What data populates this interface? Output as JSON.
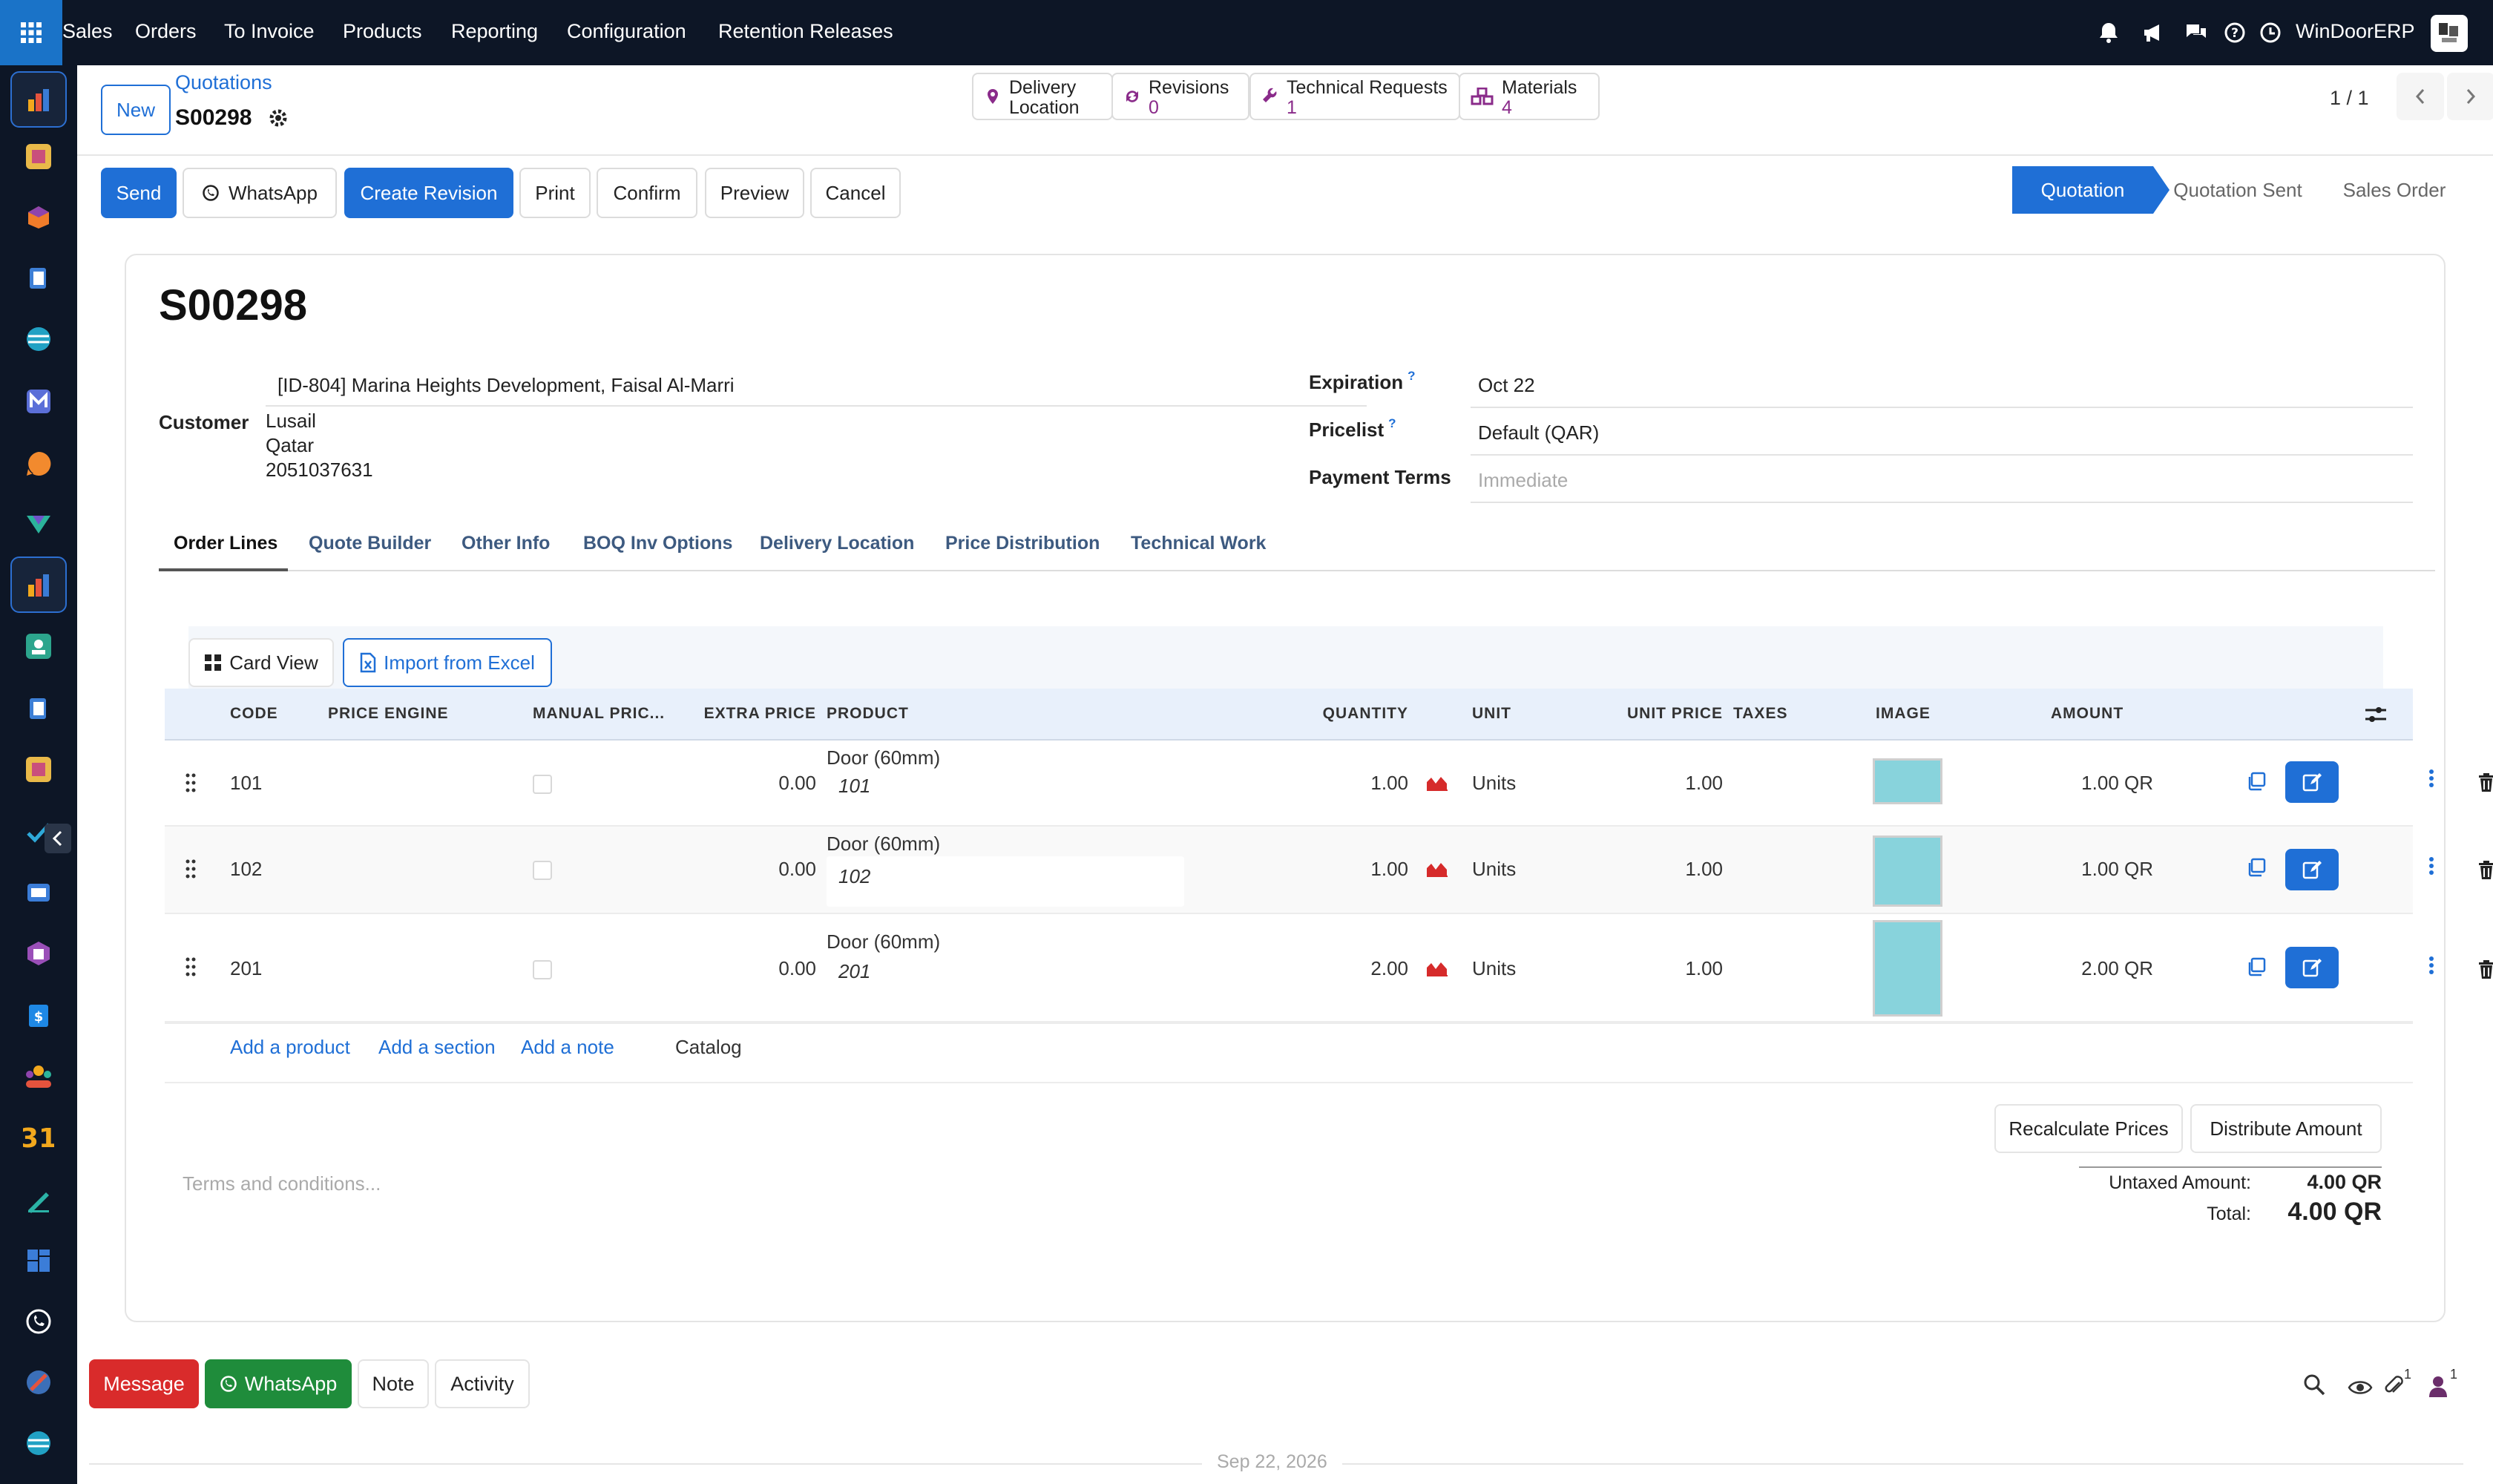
{
  "topnav": {
    "menu": [
      "Sales",
      "Orders",
      "To Invoice",
      "Products",
      "Reporting",
      "Configuration",
      "Retention Releases"
    ],
    "company": "WinDoorERP",
    "icons": [
      "bell-icon",
      "megaphone-icon",
      "chat-icon",
      "help-icon",
      "clock-icon"
    ]
  },
  "sidebar": {
    "icons": [
      "sales-app-icon",
      "app-icon-2",
      "app-icon-3",
      "app-icon-4",
      "app-icon-5",
      "app-icon-6",
      "app-icon-7",
      "app-icon-8",
      "sales-app-icon-active",
      "app-icon-10",
      "app-icon-11",
      "app-icon-12",
      "app-icon-13",
      "app-icon-14",
      "app-icon-15",
      "app-icon-16",
      "app-icon-17",
      "calendar-app-icon",
      "app-icon-19",
      "app-icon-20",
      "whatsapp-app-icon",
      "app-icon-22",
      "app-icon-23"
    ]
  },
  "control": {
    "new_label": "New",
    "breadcrumb": "Quotations",
    "record": "S00298",
    "pager": "1 / 1"
  },
  "smart_buttons": [
    {
      "title": "Delivery",
      "value": "Location"
    },
    {
      "title": "Revisions",
      "value": "0"
    },
    {
      "title": "Technical Requests",
      "value": "1"
    },
    {
      "title": "Materials",
      "value": "4"
    }
  ],
  "actions": {
    "send": "Send",
    "whatsapp": "WhatsApp",
    "create_revision": "Create Revision",
    "print": "Print",
    "confirm": "Confirm",
    "preview": "Preview",
    "cancel": "Cancel"
  },
  "status_stages": [
    "Quotation",
    "Quotation Sent",
    "Sales Order"
  ],
  "status_active": "Quotation",
  "form": {
    "name": "S00298",
    "customer_label": "Customer",
    "customer_name": "[ID-804] Marina Heights Development, Faisal Al-Marri",
    "customer_city": "Lusail",
    "customer_country": "Qatar",
    "customer_phone": "2051037631",
    "expiration_label": "Expiration",
    "expiration_value": "Oct 22",
    "pricelist_label": "Pricelist",
    "pricelist_value": "Default (QAR)",
    "payment_terms_label": "Payment Terms",
    "payment_terms_placeholder": "Immediate",
    "help_mark": "?"
  },
  "tabs": [
    "Order Lines",
    "Quote Builder",
    "Other Info",
    "BOQ Inv Options",
    "Delivery Location",
    "Price Distribution",
    "Technical Work"
  ],
  "lines_toolbar": {
    "card_view": "Card View",
    "import_excel": "Import from Excel"
  },
  "table": {
    "columns": [
      "CODE",
      "PRICE ENGINE",
      "MANUAL PRIC...",
      "EXTRA PRICE",
      "PRODUCT",
      "QUANTITY",
      "UNIT",
      "UNIT PRICE",
      "TAXES",
      "IMAGE",
      "AMOUNT"
    ],
    "rows": [
      {
        "code": "101",
        "extra_price": "0.00",
        "product": "Door (60mm)",
        "description": "101",
        "quantity": "1.00",
        "unit": "Units",
        "unit_price": "1.00",
        "amount": "1.00 QR"
      },
      {
        "code": "102",
        "extra_price": "0.00",
        "product": "Door (60mm)",
        "description": "102",
        "quantity": "1.00",
        "unit": "Units",
        "unit_price": "1.00",
        "amount": "1.00 QR"
      },
      {
        "code": "201",
        "extra_price": "0.00",
        "product": "Door (60mm)",
        "description": "201",
        "quantity": "2.00",
        "unit": "Units",
        "unit_price": "1.00",
        "amount": "2.00 QR"
      }
    ],
    "add_product": "Add a product",
    "add_section": "Add a section",
    "add_note": "Add a note",
    "catalog": "Catalog"
  },
  "footer": {
    "recalculate": "Recalculate Prices",
    "distribute": "Distribute Amount",
    "terms_placeholder": "Terms and conditions...",
    "untaxed_label": "Untaxed Amount:",
    "untaxed_value": "4.00 QR",
    "total_label": "Total:",
    "total_value": "4.00 QR"
  },
  "chatter": {
    "message": "Message",
    "whatsapp": "WhatsApp",
    "note": "Note",
    "activity": "Activity",
    "attachments_count": "1",
    "followers_count": "1",
    "date_separator": "Sep 22, 2026"
  },
  "colors": {
    "primary": "#1f6fd6",
    "topbar": "#0d1626",
    "message_btn": "#d92b2b",
    "whatsapp_btn": "#1f8c3b",
    "link_purple": "#8a2b8a",
    "image_swatch": "#88d3dc"
  }
}
